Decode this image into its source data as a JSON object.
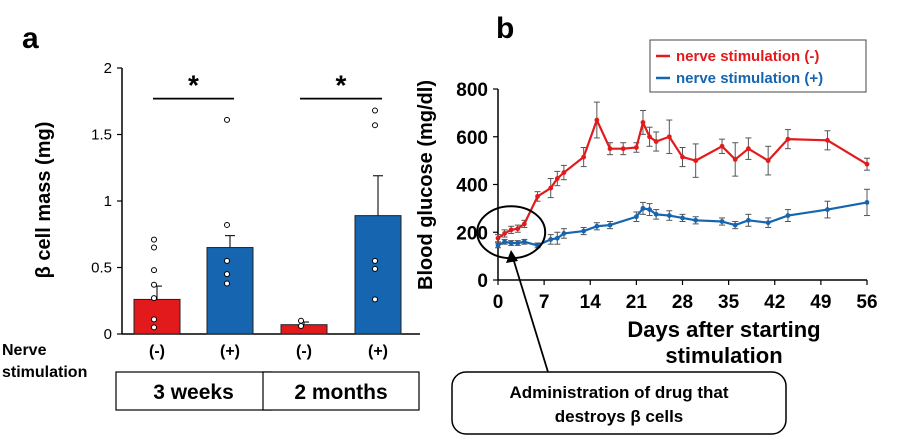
{
  "colors": {
    "red": "#e31a1c",
    "blue": "#1565b0",
    "axis": "#000000",
    "errorbar": "#333333"
  },
  "chart_data": [
    {
      "panel_label": "a",
      "type": "bar",
      "ylabel": "β cell mass (mg)",
      "ylim": [
        0,
        2
      ],
      "yticks": [
        0,
        0.5,
        1,
        1.5,
        2
      ],
      "ytick_labels": [
        "0",
        "0.5",
        "1",
        "1.5",
        "2"
      ],
      "categories": [
        "(-)",
        "(+)",
        "(-)",
        "(+)"
      ],
      "row_label": "Nerve\nstimulation",
      "row_label_line1": "Nerve",
      "row_label_line2": "stimulation",
      "groups": [
        {
          "label": "3 weeks",
          "bars": [
            0,
            1
          ]
        },
        {
          "label": "2 months",
          "bars": [
            2,
            3
          ]
        }
      ],
      "bars": [
        {
          "category": "(-)",
          "color": "red",
          "value": 0.26,
          "error": 0.1,
          "points": [
            0.71,
            0.65,
            0.48,
            0.37,
            0.27,
            0.11,
            0.05
          ]
        },
        {
          "category": "(+)",
          "color": "blue",
          "value": 0.65,
          "error": 0.09,
          "points": [
            1.61,
            0.82,
            0.55,
            0.45,
            0.38
          ]
        },
        {
          "category": "(-)",
          "color": "red",
          "value": 0.07,
          "error": 0.02,
          "points": [
            0.1,
            0.06
          ]
        },
        {
          "category": "(+)",
          "color": "blue",
          "value": 0.89,
          "error": 0.3,
          "points": [
            1.68,
            1.57,
            0.55,
            0.49,
            0.26
          ]
        }
      ],
      "significance": [
        {
          "bars": [
            0,
            1
          ],
          "y": 1.77,
          "label": "*"
        },
        {
          "bars": [
            2,
            3
          ],
          "y": 1.77,
          "label": "*"
        }
      ]
    },
    {
      "panel_label": "b",
      "type": "line",
      "xlabel": "Days after starting stimulation",
      "xlabel_line1": "Days after starting",
      "xlabel_line2": "stimulation",
      "ylabel": "Blood glucose (mg/dl)",
      "xlim": [
        0,
        56
      ],
      "ylim": [
        0,
        800
      ],
      "xticks": [
        0,
        7,
        14,
        21,
        28,
        35,
        42,
        49,
        56
      ],
      "yticks": [
        0,
        200,
        400,
        600,
        800
      ],
      "legend_position": "top-right",
      "series": [
        {
          "name": "nerve stimulation (-)",
          "color": "red",
          "x": [
            0,
            1,
            2,
            3,
            4,
            6,
            8,
            9,
            10,
            13,
            15,
            17,
            19,
            21,
            22,
            23,
            24,
            26,
            28,
            30,
            34,
            36,
            38,
            41,
            44,
            50,
            56
          ],
          "y": [
            175,
            195,
            210,
            215,
            235,
            350,
            385,
            425,
            450,
            515,
            670,
            550,
            550,
            555,
            660,
            600,
            580,
            600,
            515,
            500,
            560,
            505,
            550,
            500,
            590,
            585,
            485
          ],
          "err": [
            15,
            15,
            15,
            15,
            15,
            20,
            40,
            30,
            30,
            40,
            75,
            25,
            25,
            20,
            50,
            40,
            40,
            70,
            40,
            70,
            30,
            70,
            45,
            60,
            40,
            40,
            25
          ]
        },
        {
          "name": "nerve stimulation (+)",
          "color": "blue",
          "x": [
            0,
            1,
            2,
            3,
            4,
            6,
            8,
            9,
            10,
            13,
            15,
            17,
            21,
            22,
            23,
            24,
            26,
            28,
            30,
            34,
            36,
            38,
            41,
            44,
            50,
            56
          ],
          "y": [
            145,
            160,
            155,
            155,
            160,
            145,
            170,
            175,
            195,
            205,
            225,
            230,
            265,
            300,
            295,
            275,
            270,
            260,
            250,
            245,
            230,
            250,
            240,
            270,
            295,
            325
          ],
          "err": [
            10,
            10,
            10,
            10,
            10,
            10,
            20,
            25,
            20,
            15,
            15,
            15,
            20,
            25,
            25,
            20,
            20,
            15,
            15,
            15,
            15,
            25,
            20,
            25,
            35,
            55
          ]
        }
      ],
      "annotation": {
        "text_line1": "Administration of drug that",
        "text_line2": "destroys β cells",
        "circle_center": {
          "x": 2,
          "y": 200
        }
      }
    }
  ]
}
